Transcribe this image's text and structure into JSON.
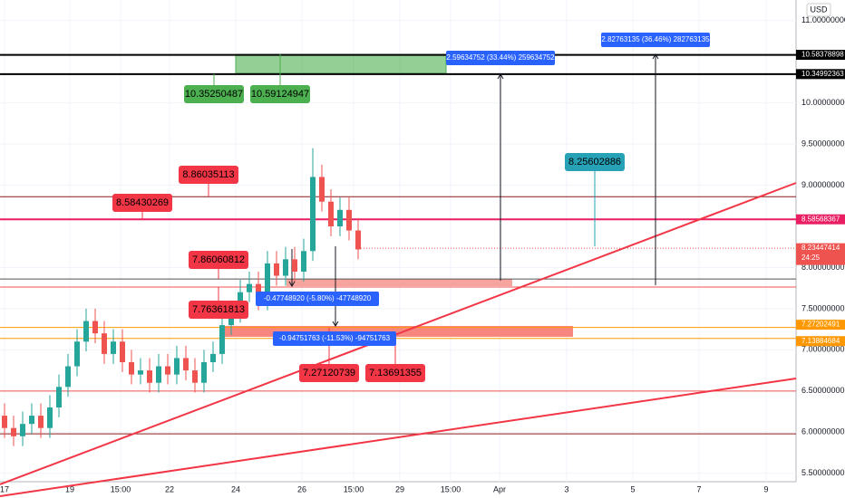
{
  "chart_data": {
    "type": "candlestick",
    "currency": "USD",
    "ylim": [
      5.2,
      11.25
    ],
    "yticks": [
      {
        "value": 11,
        "label": "11.00000000"
      },
      {
        "value": 10,
        "label": "10.00000000"
      },
      {
        "value": 9.5,
        "label": "9.50000000"
      },
      {
        "value": 9,
        "label": "9.00000000"
      },
      {
        "value": 8,
        "label": "8.00000000"
      },
      {
        "value": 7.5,
        "label": "7.50000000"
      },
      {
        "value": 7,
        "label": "7.00000000"
      },
      {
        "value": 6.5,
        "label": "6.50000000"
      },
      {
        "value": 6,
        "label": "6.00000000"
      },
      {
        "value": 5.5,
        "label": "5.50000000"
      }
    ],
    "x_labels": [
      "17",
      "19",
      "15:00",
      "22",
      "24",
      "26",
      "15:00",
      "29",
      "15:00",
      "Apr",
      "3",
      "5",
      "7",
      "9"
    ],
    "up_color": "#26a69a",
    "down_color": "#ef5350",
    "open": [
      6.2,
      6.05,
      5.95,
      6.1,
      6.2,
      6.05,
      6.3,
      6.55,
      6.8,
      7.1,
      7.35,
      7.2,
      6.95,
      7.1,
      6.85,
      6.7,
      6.75,
      6.6,
      6.8,
      6.7,
      6.9,
      6.75,
      6.6,
      6.85,
      6.95,
      7.3,
      7.45,
      7.7,
      7.8,
      7.6,
      8.05,
      7.9,
      8.1,
      7.95,
      8.2,
      9.1,
      8.8,
      8.5,
      8.7,
      8.45
    ],
    "high": [
      6.35,
      6.2,
      6.25,
      6.35,
      6.35,
      6.45,
      6.7,
      6.95,
      7.25,
      7.5,
      7.5,
      7.35,
      7.25,
      7.25,
      7.0,
      6.9,
      6.9,
      6.95,
      6.95,
      7.05,
      7.05,
      6.9,
      7.0,
      7.1,
      7.45,
      7.6,
      7.85,
      7.95,
      7.95,
      8.2,
      8.2,
      8.25,
      8.25,
      8.35,
      9.45,
      9.25,
      8.95,
      8.85,
      8.85,
      8.6
    ],
    "low": [
      5.93,
      5.83,
      5.83,
      5.98,
      5.93,
      5.93,
      6.18,
      6.43,
      6.68,
      6.98,
      7.08,
      6.83,
      6.83,
      6.73,
      6.58,
      6.58,
      6.48,
      6.48,
      6.58,
      6.58,
      6.63,
      6.48,
      6.48,
      6.73,
      6.83,
      7.18,
      7.33,
      7.58,
      7.48,
      7.48,
      7.78,
      7.78,
      7.83,
      7.83,
      8.08,
      8.68,
      8.38,
      8.38,
      8.33,
      8.1
    ],
    "close": [
      6.05,
      5.95,
      6.1,
      6.2,
      6.05,
      6.3,
      6.55,
      6.8,
      7.1,
      7.35,
      7.2,
      6.95,
      7.1,
      6.85,
      6.7,
      6.75,
      6.6,
      6.8,
      6.7,
      6.9,
      6.75,
      6.6,
      6.85,
      6.95,
      7.3,
      7.45,
      7.7,
      7.8,
      7.6,
      8.05,
      7.9,
      8.1,
      7.95,
      8.2,
      9.1,
      8.8,
      8.5,
      8.7,
      8.45,
      8.22
    ],
    "levels": [
      {
        "value": 10.58378898,
        "color": "#000000"
      },
      {
        "value": 10.34992363,
        "color": "#000000"
      },
      {
        "value": 8.86035113,
        "color": "#8b1a1a"
      },
      {
        "value": 8.58568367,
        "color": "#e91e63"
      },
      {
        "value": 7.86060812,
        "color": "#555555"
      },
      {
        "value": 7.76361813,
        "color": "#ef5350"
      },
      {
        "value": 7.27202491,
        "color": "#ff9800"
      },
      {
        "value": 7.13884684,
        "color": "#ff9800"
      },
      {
        "value": 6.5,
        "color": "#ef5350"
      },
      {
        "value": 5.98,
        "color": "#8b1a1a"
      }
    ],
    "price_tags": [
      {
        "value": 10.58378898,
        "color": "#000000"
      },
      {
        "value": 10.34992363,
        "color": "#000000"
      },
      {
        "value": 8.58568367,
        "color": "#e91e63"
      },
      {
        "value": 8.23447414,
        "color": "#ef5350"
      },
      {
        "value": 7.27202491,
        "color": "#ff9800"
      },
      {
        "value": 7.13884684,
        "color": "#ff9800"
      }
    ],
    "countdown": "24:25",
    "annotations": [
      {
        "value": 10.35250487,
        "color": "#4caf50"
      },
      {
        "value": 10.59124947,
        "color": "#4caf50"
      },
      {
        "value": 8.86035113,
        "color": "#f23645"
      },
      {
        "value": 8.58430269,
        "color": "#f23645"
      },
      {
        "value": 7.86060812,
        "color": "#f23645"
      },
      {
        "value": 7.76361813,
        "color": "#f23645"
      },
      {
        "value": 7.27120739,
        "color": "#f23645"
      },
      {
        "value": 7.13691355,
        "color": "#f23645"
      },
      {
        "value": 8.25602886,
        "color": "#26a1b5"
      }
    ],
    "measures": [
      "-0.47748920 (-5.80%) -47748920",
      "-0.94751763 (-11.53%) -94751763",
      "2.59634752 (33.44%) 259634752",
      "2.82763135 (36.46%) 282763135"
    ]
  }
}
